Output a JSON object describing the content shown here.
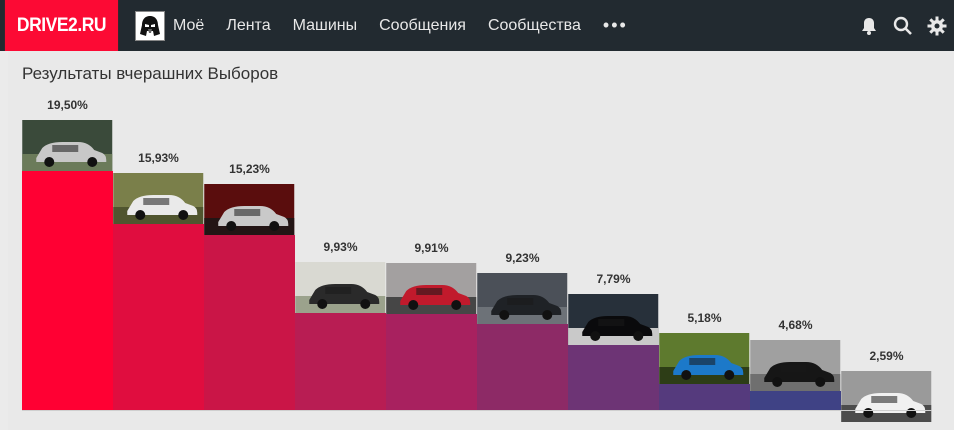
{
  "header": {
    "logo_text": "DRIVE2.RU",
    "avatar_icon": "darth-vader-avatar-icon",
    "nav": [
      {
        "label": "Моё"
      },
      {
        "label": "Лента"
      },
      {
        "label": "Машины"
      },
      {
        "label": "Сообщения"
      },
      {
        "label": "Сообщества"
      }
    ],
    "more_label": "•••",
    "icons": [
      "bell-icon",
      "search-icon",
      "gear-icon"
    ],
    "colors": {
      "bar_bg": "#222a30",
      "logo_bg": "#fc0a34"
    }
  },
  "poll": {
    "title": "Результаты вчерашних Выборов"
  },
  "chart_data": {
    "type": "bar",
    "categories": [
      "",
      "",
      "",
      "",
      "",
      "",
      "",
      "",
      "",
      ""
    ],
    "values": [
      19.5,
      15.93,
      15.23,
      9.93,
      9.91,
      9.23,
      7.79,
      5.18,
      4.68,
      2.59
    ],
    "labels": [
      "19,50%",
      "15,93%",
      "15,23%",
      "9,93%",
      "9,91%",
      "9,23%",
      "7,79%",
      "5,18%",
      "4,68%",
      "2,59%"
    ],
    "colors": [
      "#ff0033",
      "#e00d3f",
      "#ca1547",
      "#b81d53",
      "#a8215f",
      "#8d2a66",
      "#6d3475",
      "#553a7d",
      "#3f4285",
      "#2554a0"
    ],
    "photo_themes": [
      "white-cars-street",
      "offroad-pickup-snow",
      "red-garage-sedan",
      "silver-sedan-arch",
      "red-hatchback-girl",
      "dark-coupe-lot",
      "black-sportscar-night",
      "blue-coupe-green",
      "black-sedan-urban",
      "white-hatchback-street"
    ],
    "ylim": [
      0,
      19.5
    ],
    "grid": false
  }
}
